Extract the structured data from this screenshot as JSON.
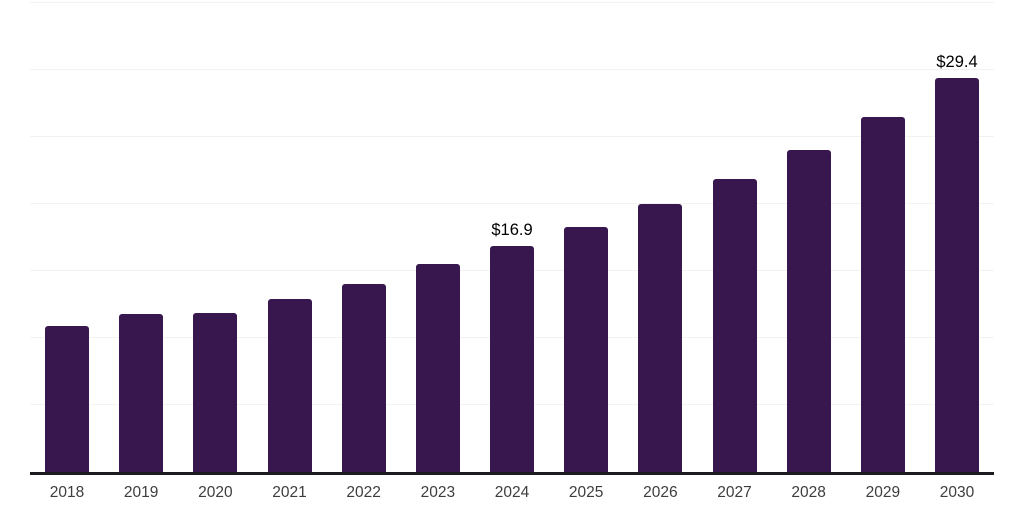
{
  "chart_data": {
    "type": "bar",
    "categories": [
      "2018",
      "2019",
      "2020",
      "2021",
      "2022",
      "2023",
      "2024",
      "2025",
      "2026",
      "2027",
      "2028",
      "2029",
      "2030"
    ],
    "values": [
      10.9,
      11.8,
      11.9,
      12.9,
      14.0,
      15.5,
      16.9,
      18.3,
      20.0,
      21.9,
      24.0,
      26.5,
      29.4
    ],
    "data_labels": [
      {
        "index": 6,
        "text": "$16.9"
      },
      {
        "index": 12,
        "text": "$29.4"
      }
    ],
    "title": "",
    "xlabel": "",
    "ylabel": "",
    "ylim": [
      0,
      35
    ],
    "grid_step": 5,
    "grid": "horizontal",
    "legend": "none",
    "colors": {
      "bar": "#38164E",
      "axis_line": "#1B1B22",
      "gridline": "#F2F2F2",
      "tick_label": "#3D3D3D",
      "data_label": "#000000",
      "background": "#FFFFFF"
    }
  }
}
